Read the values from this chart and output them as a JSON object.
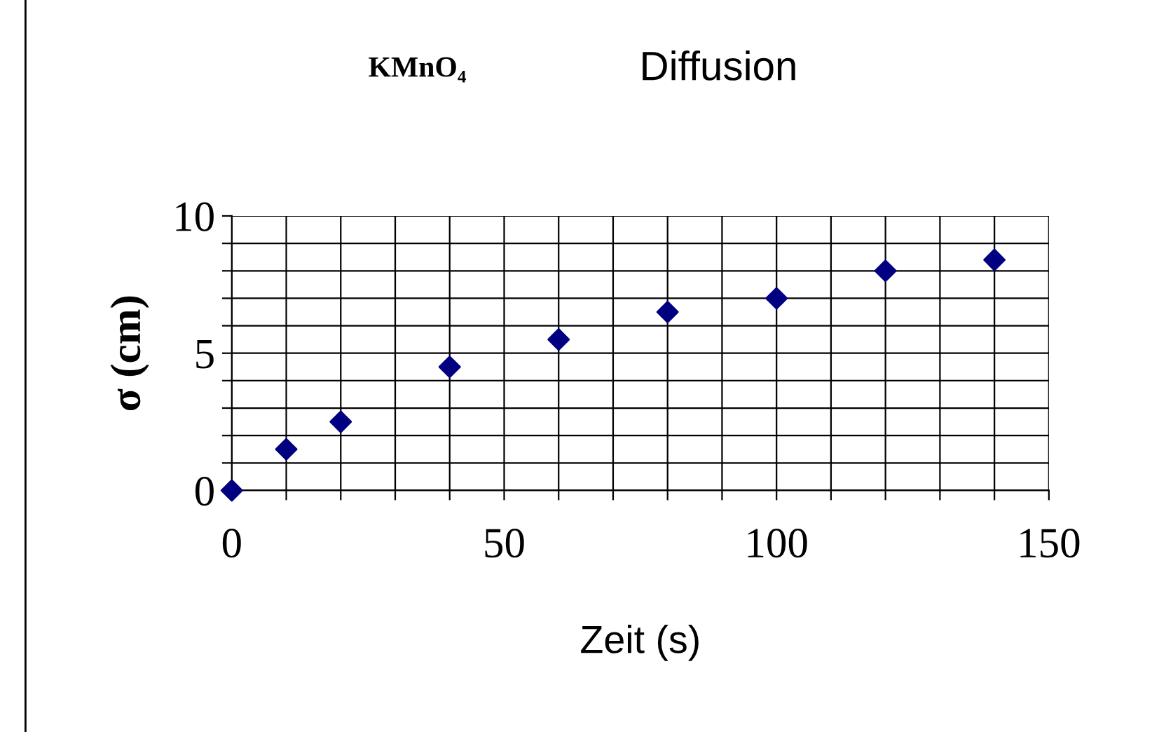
{
  "chart_data": {
    "type": "scatter",
    "title": "Diffusion",
    "annotations": [
      "KMnO₄"
    ],
    "xlabel": "Zeit (s)",
    "ylabel": "σ (cm)",
    "x": [
      0,
      10,
      20,
      40,
      60,
      80,
      100,
      120,
      140
    ],
    "series": [
      {
        "color": "#000080",
        "values": [
          0,
          1.5,
          2.5,
          4.5,
          5.5,
          6.5,
          7,
          8,
          8.4
        ]
      }
    ],
    "marker": "diamond",
    "grid": true,
    "xlim": [
      0,
      150
    ],
    "ylim": [
      0,
      10
    ],
    "xticks": [
      0,
      {
        "value": 10,
        "label": null
      },
      {
        "value": 20,
        "label": null
      },
      {
        "value": 30,
        "label": null
      },
      {
        "value": 40,
        "label": null
      },
      50,
      {
        "value": 60,
        "label": null
      },
      {
        "value": 70,
        "label": null
      },
      {
        "value": 80,
        "label": null
      },
      {
        "value": 90,
        "label": null
      },
      100,
      {
        "value": 110,
        "label": null
      },
      {
        "value": 120,
        "label": null
      },
      {
        "value": 130,
        "label": null
      },
      {
        "value": 140,
        "label": null
      },
      150
    ],
    "yticks": [
      0,
      {
        "value": 1,
        "label": null
      },
      {
        "value": 2,
        "label": null
      },
      {
        "value": 3,
        "label": null
      },
      {
        "value": 4,
        "label": null
      },
      5,
      {
        "value": 6,
        "label": null
      },
      {
        "value": 7,
        "label": null
      },
      {
        "value": 8,
        "label": null
      },
      {
        "value": 9,
        "label": null
      },
      10
    ]
  }
}
